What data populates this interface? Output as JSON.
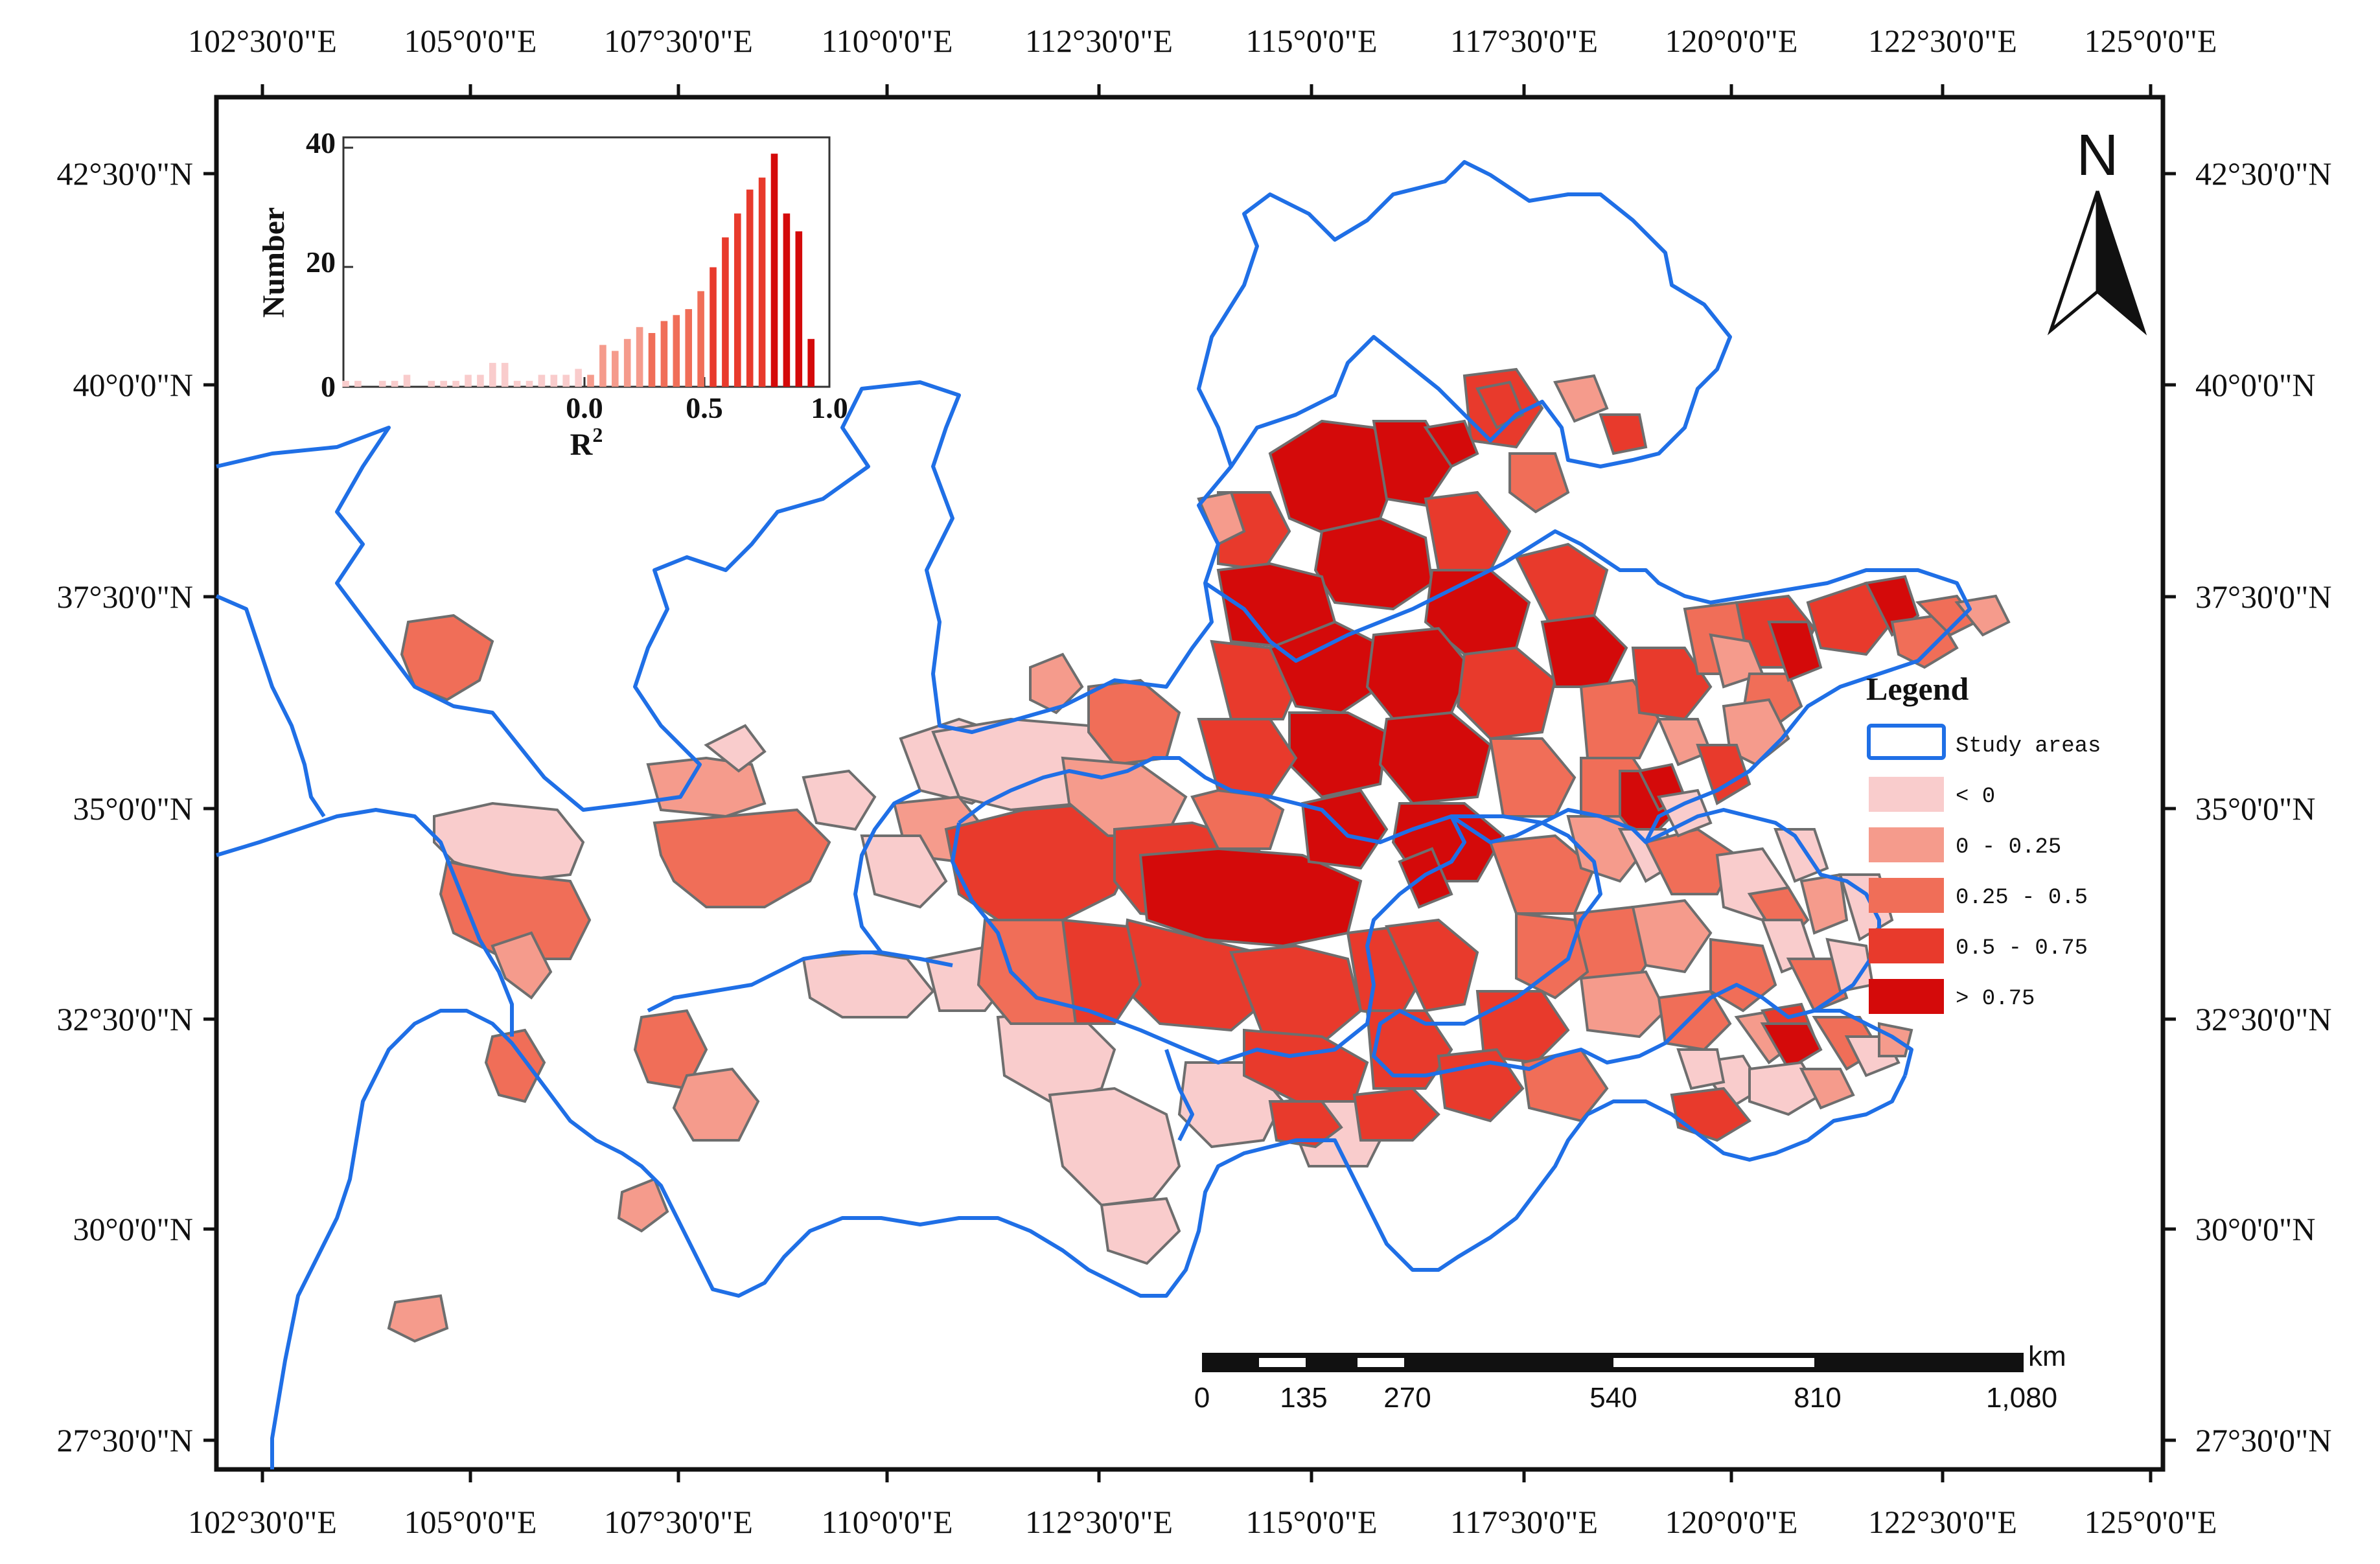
{
  "top_labels": [
    "102°30'0\"E",
    "105°0'0\"E",
    "107°30'0\"E",
    "110°0'0\"E",
    "112°30'0\"E",
    "115°0'0\"E",
    "117°30'0\"E",
    "120°0'0\"E",
    "122°30'0\"E",
    "125°0'0\"E"
  ],
  "bottom_labels": [
    "102°30'0\"E",
    "105°0'0\"E",
    "107°30'0\"E",
    "110°0'0\"E",
    "112°30'0\"E",
    "115°0'0\"E",
    "117°30'0\"E",
    "120°0'0\"E",
    "122°30'0\"E",
    "125°0'0\"E"
  ],
  "left_labels": [
    "42°30'0\"N",
    "40°0'0\"N",
    "37°30'0\"N",
    "35°0'0\"N",
    "32°30'0\"N",
    "30°0'0\"N",
    "27°30'0\"N"
  ],
  "right_labels": [
    "42°30'0\"N",
    "40°0'0\"N",
    "37°30'0\"N",
    "35°0'0\"N",
    "32°30'0\"N",
    "30°0'0\"N",
    "27°30'0\"N"
  ],
  "north_arrow": {
    "letter": "N",
    "icon": "north-arrow-icon"
  },
  "legend": {
    "title": "Legend",
    "items": [
      {
        "label": "Study areas",
        "type": "outline",
        "color": "#1f6fe6"
      },
      {
        "label": "< 0",
        "type": "fill",
        "color": "#f9cccc"
      },
      {
        "label": "0 - 0.25",
        "type": "fill",
        "color": "#f59b8c"
      },
      {
        "label": "0.25 - 0.5",
        "type": "fill",
        "color": "#f06e58"
      },
      {
        "label": "0.5 - 0.75",
        "type": "fill",
        "color": "#e83a2c"
      },
      {
        "label": "> 0.75",
        "type": "fill",
        "color": "#d40a0a"
      }
    ]
  },
  "scale_bar": {
    "unit": "km",
    "labels": [
      "0",
      "135",
      "270",
      "540",
      "810",
      "1,080"
    ]
  },
  "chart_data": {
    "type": "bar",
    "xlabel": "R",
    "xlabel_sup": "2",
    "ylabel": "Number",
    "x_ticks": [
      "0.0",
      "0.5",
      "1.0"
    ],
    "y_ticks": [
      "0",
      "20",
      "40"
    ],
    "ylim": [
      0,
      40
    ],
    "xlim": [
      -1.0,
      1.05
    ],
    "bar_width": 0.028,
    "bins_x": [
      -0.975,
      -0.925,
      -0.825,
      -0.775,
      -0.725,
      -0.625,
      -0.575,
      -0.525,
      -0.475,
      -0.425,
      -0.375,
      -0.325,
      -0.275,
      -0.225,
      -0.175,
      -0.125,
      -0.075,
      -0.025,
      0.025,
      0.075,
      0.125,
      0.175,
      0.225,
      0.275,
      0.325,
      0.375,
      0.425,
      0.475,
      0.525,
      0.575,
      0.625,
      0.675,
      0.725,
      0.775,
      0.825,
      0.875,
      0.925
    ],
    "values": [
      1,
      1,
      1,
      1,
      2,
      1,
      1,
      1,
      2,
      2,
      4,
      4,
      1,
      1,
      2,
      2,
      2,
      3,
      2,
      7,
      6,
      8,
      10,
      9,
      11,
      12,
      13,
      16,
      20,
      25,
      29,
      33,
      35,
      39,
      29,
      26,
      8
    ],
    "colors": [
      "#f9cccc",
      "#f9cccc",
      "#f9cccc",
      "#f9cccc",
      "#f9cccc",
      "#f9cccc",
      "#f9cccc",
      "#f9cccc",
      "#f9cccc",
      "#f9cccc",
      "#f9cccc",
      "#f9cccc",
      "#f9cccc",
      "#f9cccc",
      "#f9cccc",
      "#f9cccc",
      "#f9cccc",
      "#f9cccc",
      "#f59b8c",
      "#f59b8c",
      "#f59b8c",
      "#f59b8c",
      "#f59b8c",
      "#f06e58",
      "#f06e58",
      "#f06e58",
      "#f06e58",
      "#f06e58",
      "#e83a2c",
      "#e83a2c",
      "#e83a2c",
      "#e83a2c",
      "#e83a2c",
      "#d40a0a",
      "#d40a0a",
      "#d40a0a",
      "#d40a0a"
    ]
  }
}
